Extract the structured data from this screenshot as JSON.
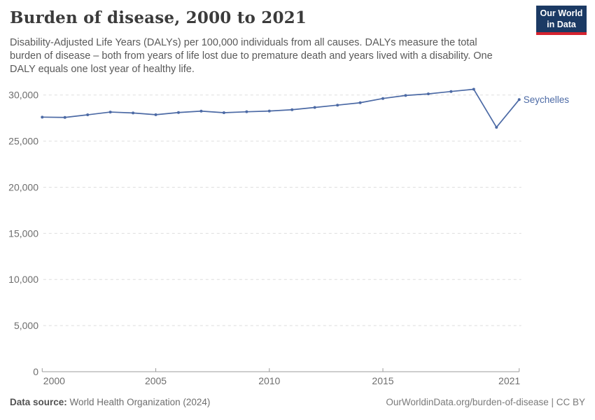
{
  "header": {
    "title": "Burden of disease, 2000 to 2021",
    "subtitle": "Disability-Adjusted Life Years (DALYs) per 100,000 individuals from all causes. DALYs measure the total burden of disease – both from years of life lost due to premature death and years lived with a disability. One DALY equals one lost year of healthy life.",
    "logo": {
      "line1": "Our World",
      "line2": "in Data",
      "bg_color": "#1b3a64",
      "stripe_color": "#d5232f"
    }
  },
  "chart_data": {
    "type": "line",
    "title": "Burden of disease, 2000 to 2021",
    "xlabel": "",
    "ylabel": "",
    "x": [
      2000,
      2001,
      2002,
      2003,
      2004,
      2005,
      2006,
      2007,
      2008,
      2009,
      2010,
      2011,
      2012,
      2013,
      2014,
      2015,
      2016,
      2017,
      2018,
      2019,
      2020,
      2021
    ],
    "series": [
      {
        "name": "Seychelles",
        "color": "#4c6aa5",
        "values": [
          27600,
          27570,
          27850,
          28150,
          28050,
          27860,
          28100,
          28250,
          28080,
          28180,
          28260,
          28400,
          28650,
          28900,
          29160,
          29620,
          29950,
          30120,
          30380,
          30620,
          26500,
          29500
        ]
      }
    ],
    "ylim": [
      0,
      30000
    ],
    "yticks": [
      0,
      5000,
      10000,
      15000,
      20000,
      25000,
      30000
    ],
    "ytick_labels": [
      "0",
      "5,000",
      "10,000",
      "15,000",
      "20,000",
      "25,000",
      "30,000"
    ],
    "xticks": [
      2000,
      2005,
      2010,
      2015,
      2021
    ],
    "grid": "horizontal-dashed",
    "legend_position": "end-of-line-label",
    "axis_color": "#9b9b9b",
    "grid_color": "#dedede",
    "tick_label_color": "#6e6e6e"
  },
  "footer": {
    "source_label": "Data source:",
    "source_value": "World Health Organization (2024)",
    "credit": "OurWorldinData.org/burden-of-disease | CC BY"
  }
}
